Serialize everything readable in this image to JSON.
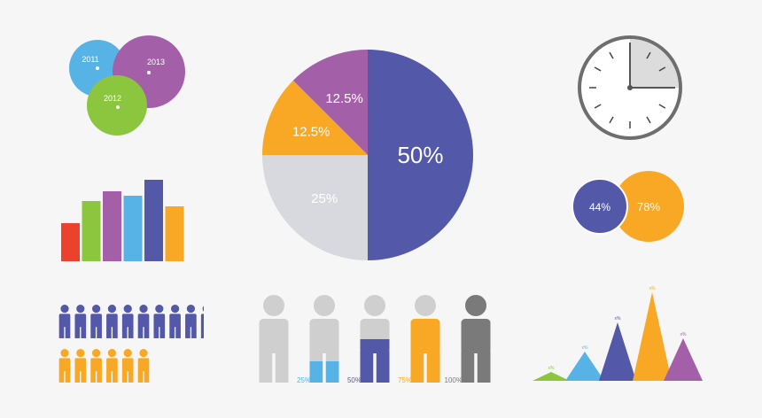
{
  "colors": {
    "blue": "#57b3e6",
    "purple": "#a35fa8",
    "green": "#8cc63f",
    "indigo": "#5358a8",
    "orange": "#f9a825",
    "red": "#ec412c",
    "gray": "#d8d9de",
    "figure_gray": "#cfcfcf",
    "dark_gray": "#7a7a7a",
    "clock_outline": "#6e6e6e",
    "clock_fill": "#dcdcdc"
  },
  "chart_data": [
    {
      "type": "pie",
      "slices": [
        {
          "label": "50%",
          "value": 50,
          "color": "#5358a8"
        },
        {
          "label": "25%",
          "value": 25,
          "color": "#d8d9de"
        },
        {
          "label": "12.5%",
          "value": 12.5,
          "color": "#f9a825"
        },
        {
          "label": "12.5%",
          "value": 12.5,
          "color": "#a35fa8"
        }
      ]
    },
    {
      "type": "bar",
      "values": [
        43,
        68,
        79,
        74,
        92,
        62
      ],
      "colors": [
        "#ec412c",
        "#8cc63f",
        "#a35fa8",
        "#57b3e6",
        "#5358a8",
        "#f9a825"
      ]
    },
    {
      "type": "venn",
      "circles": [
        {
          "label": "2011",
          "color": "#57b3e6"
        },
        {
          "label": "2013",
          "color": "#a35fa8"
        },
        {
          "label": "2012",
          "color": "#8cc63f"
        }
      ]
    },
    {
      "type": "venn",
      "circles": [
        {
          "label": "44%",
          "color": "#5358a8"
        },
        {
          "label": "78%",
          "color": "#f9a825"
        }
      ]
    },
    {
      "type": "clock",
      "fraction": 0.25
    },
    {
      "type": "pictogram",
      "rows": [
        {
          "count": 10,
          "color": "#5358a8"
        },
        {
          "count": 6,
          "color": "#f9a825"
        }
      ]
    },
    {
      "type": "figure-fill",
      "figures": [
        {
          "label": "",
          "fill": 0,
          "color": "#57b3e6"
        },
        {
          "label": "25%",
          "fill": 0.25,
          "color": "#57b3e6"
        },
        {
          "label": "50%",
          "fill": 0.5,
          "color": "#5358a8"
        },
        {
          "label": "75%",
          "fill": 0.75,
          "color": "#f9a825"
        },
        {
          "label": "100%",
          "fill": 1,
          "color": "#7a7a7a"
        }
      ]
    },
    {
      "type": "area",
      "peaks": [
        {
          "value": 10,
          "color": "#8cc63f",
          "label": "x%"
        },
        {
          "value": 33,
          "color": "#57b3e6",
          "label": "x%"
        },
        {
          "value": 66,
          "color": "#5358a8",
          "label": "x%"
        },
        {
          "value": 100,
          "color": "#f9a825",
          "label": "x%"
        },
        {
          "value": 48,
          "color": "#a35fa8",
          "label": "x%"
        }
      ]
    }
  ]
}
